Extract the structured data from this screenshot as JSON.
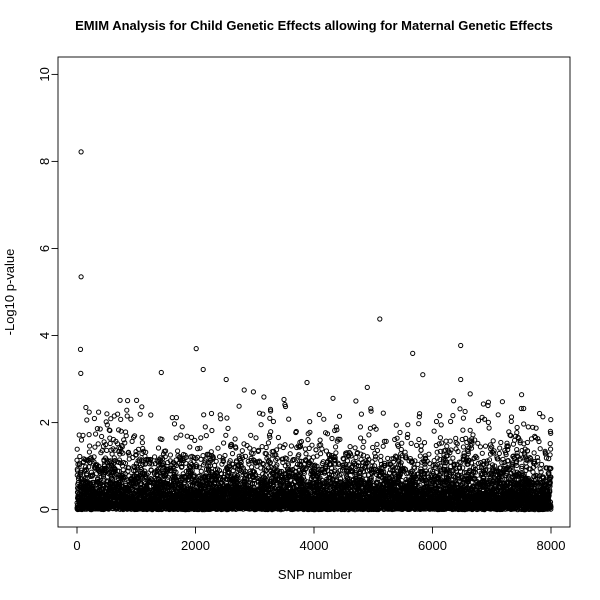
{
  "figure": {
    "background": "#ffffff",
    "foreground": "#000000"
  },
  "chart_data": {
    "type": "scatter",
    "title": "EMIM Analysis for Child Genetic Effects allowing for Maternal Genetic Effects",
    "xlabel": "SNP number",
    "ylabel": "-Log10 p-value",
    "xlim": [
      0,
      8000
    ],
    "ylim": [
      0,
      10
    ],
    "x_ticks": [
      0,
      2000,
      4000,
      6000,
      8000
    ],
    "y_ticks": [
      0,
      2,
      4,
      6,
      8,
      10
    ],
    "grid": false,
    "legend": null,
    "marker": "open-circle",
    "marker_color": "#000000",
    "n_points": 8000,
    "distribution": "x = SNP index 1..8000 evenly spaced; y = -log10 of uniform p-values (exponential decay: near-solid band below 1, sparse above 2)",
    "seed": 1234,
    "background_cap": 2.88,
    "outliers": [
      [
        70,
        8.22
      ],
      [
        70,
        5.35
      ],
      [
        60,
        3.68
      ],
      [
        65,
        3.13
      ],
      [
        1423,
        3.15
      ],
      [
        2012,
        3.7
      ],
      [
        2130,
        3.22
      ],
      [
        2518,
        2.99
      ],
      [
        3882,
        2.92
      ],
      [
        5111,
        4.38
      ],
      [
        5665,
        3.59
      ],
      [
        5836,
        3.1
      ],
      [
        6476,
        3.77
      ],
      [
        6476,
        2.99
      ]
    ]
  }
}
